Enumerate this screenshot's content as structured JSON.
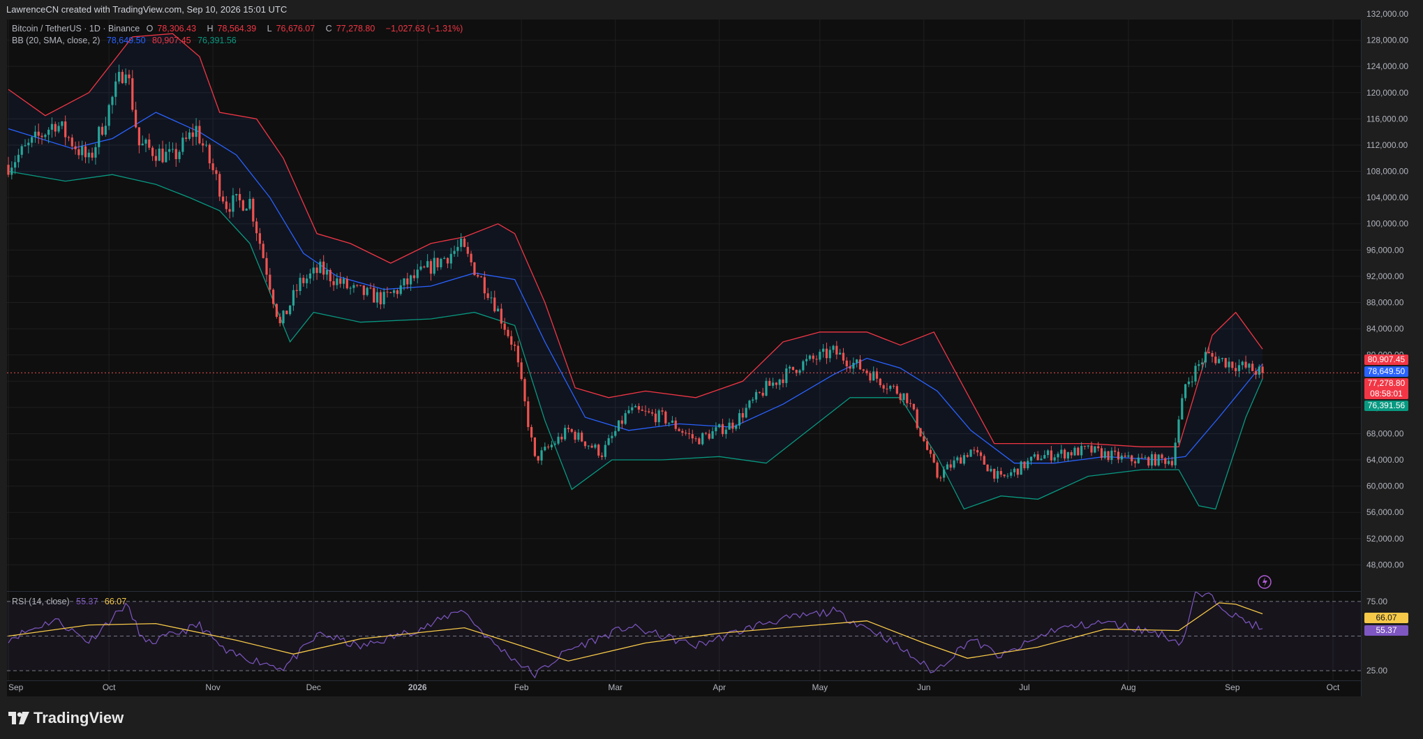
{
  "header": {
    "attribution": "LawrenceCN created with TradingView.com, Sep 10, 2026 15:01 UTC"
  },
  "legend": {
    "symbol": "Bitcoin / TetherUS · 1D · Binance",
    "o_label": "O",
    "o_val": "78,306.43",
    "h_label": "H",
    "h_val": "78,564.39",
    "l_label": "L",
    "l_val": "76,676.07",
    "c_label": "C",
    "c_val": "77,278.80",
    "change": "−1,027.63 (−1.31%)",
    "bb_name": "BB (20, SMA, close, 2)",
    "bb_basis": "78,649.50",
    "bb_upper": "80,907.45",
    "bb_lower": "76,391.56",
    "rsi_name": "RSI (14, close)",
    "rsi_val": "55.37",
    "rsi_ma": "66.07"
  },
  "price_tags": {
    "upper": "80,907.45",
    "basis": "78,649.50",
    "close": "77,278.80",
    "countdown": "08:58:01",
    "lower": "76,391.56",
    "rsi_ma": "66.07",
    "rsi": "55.37"
  },
  "brand": {
    "name": "TradingView"
  },
  "colors": {
    "background": "#0f0f0f",
    "up": "#26a69a",
    "down": "#ef5350",
    "bb_upper": "#f23645",
    "bb_basis": "#2962ff",
    "bb_lower": "#089981",
    "rsi": "#7e57c2",
    "rsi_ma": "#f7c948"
  },
  "chart_data": [
    {
      "type": "candlestick",
      "title": "Bitcoin / TetherUS · 1D · Binance",
      "ylim": [
        44000,
        132000
      ],
      "yticks": [
        48000,
        52000,
        56000,
        60000,
        64000,
        68000,
        72000,
        76000,
        80000,
        84000,
        88000,
        92000,
        96000,
        100000,
        104000,
        108000,
        112000,
        116000,
        120000,
        124000,
        128000,
        132000
      ],
      "ytick_labels": [
        "48,000.00",
        "52,000.00",
        "56,000.00",
        "60,000.00",
        "64,000.00",
        "68,000.00",
        "72,000.00",
        "76,000.00",
        "80,000.00",
        "84,000.00",
        "88,000.00",
        "92,000.00",
        "96,000.00",
        "100,000.00",
        "104,000.00",
        "108,000.00",
        "112,000.00",
        "116,000.00",
        "120,000.00",
        "124,000.00",
        "128,000.00",
        "132,000.00"
      ],
      "xtick_labels": [
        "Sep",
        "Oct",
        "Nov",
        "Dec",
        "2026",
        "Feb",
        "Mar",
        "Apr",
        "May",
        "Jun",
        "Jul",
        "Aug",
        "Sep",
        "Oct"
      ],
      "close_path": [
        {
          "x": "2025-09-01",
          "y": 109000
        },
        {
          "x": "2025-09-15",
          "y": 115500
        },
        {
          "x": "2025-09-25",
          "y": 109500
        },
        {
          "x": "2025-10-06",
          "y": 124500
        },
        {
          "x": "2025-10-10",
          "y": 112000
        },
        {
          "x": "2025-10-20",
          "y": 110000
        },
        {
          "x": "2025-10-27",
          "y": 114500
        },
        {
          "x": "2025-11-05",
          "y": 103000
        },
        {
          "x": "2025-11-12",
          "y": 103500
        },
        {
          "x": "2025-11-21",
          "y": 84500
        },
        {
          "x": "2025-11-27",
          "y": 91000
        },
        {
          "x": "2025-12-03",
          "y": 93000
        },
        {
          "x": "2025-12-12",
          "y": 90000
        },
        {
          "x": "2025-12-22",
          "y": 88500
        },
        {
          "x": "2026-01-05",
          "y": 93500
        },
        {
          "x": "2026-01-14",
          "y": 96500
        },
        {
          "x": "2026-01-23",
          "y": 89000
        },
        {
          "x": "2026-01-30",
          "y": 81000
        },
        {
          "x": "2026-02-05",
          "y": 64000
        },
        {
          "x": "2026-02-15",
          "y": 68500
        },
        {
          "x": "2026-02-25",
          "y": 65000
        },
        {
          "x": "2026-03-05",
          "y": 71500
        },
        {
          "x": "2026-03-15",
          "y": 70500
        },
        {
          "x": "2026-03-25",
          "y": 67000
        },
        {
          "x": "2026-04-05",
          "y": 69500
        },
        {
          "x": "2026-04-15",
          "y": 75000
        },
        {
          "x": "2026-04-25",
          "y": 78500
        },
        {
          "x": "2026-05-05",
          "y": 80500
        },
        {
          "x": "2026-05-15",
          "y": 77500
        },
        {
          "x": "2026-05-27",
          "y": 73500
        },
        {
          "x": "2026-06-05",
          "y": 61500
        },
        {
          "x": "2026-06-15",
          "y": 65500
        },
        {
          "x": "2026-06-24",
          "y": 61000
        },
        {
          "x": "2026-07-05",
          "y": 64500
        },
        {
          "x": "2026-07-20",
          "y": 65500
        },
        {
          "x": "2026-08-01",
          "y": 64000
        },
        {
          "x": "2026-08-14",
          "y": 64000
        },
        {
          "x": "2026-08-18",
          "y": 75500
        },
        {
          "x": "2026-08-24",
          "y": 80000
        },
        {
          "x": "2026-09-02",
          "y": 78500
        },
        {
          "x": "2026-09-10",
          "y": 77278.8
        }
      ],
      "series": [
        {
          "name": "BB upper",
          "values": [
            {
              "x": "2025-09-01",
              "y": 120500
            },
            {
              "x": "2025-09-12",
              "y": 116500
            },
            {
              "x": "2025-09-25",
              "y": 120000
            },
            {
              "x": "2025-10-08",
              "y": 128500
            },
            {
              "x": "2025-10-20",
              "y": 129000
            },
            {
              "x": "2025-10-28",
              "y": 125500
            },
            {
              "x": "2025-11-03",
              "y": 117000
            },
            {
              "x": "2025-11-14",
              "y": 116000
            },
            {
              "x": "2025-11-22",
              "y": 110000
            },
            {
              "x": "2025-12-02",
              "y": 98500
            },
            {
              "x": "2025-12-12",
              "y": 97000
            },
            {
              "x": "2025-12-24",
              "y": 94000
            },
            {
              "x": "2026-01-05",
              "y": 97000
            },
            {
              "x": "2026-01-15",
              "y": 98000
            },
            {
              "x": "2026-01-25",
              "y": 100000
            },
            {
              "x": "2026-01-30",
              "y": 98500
            },
            {
              "x": "2026-02-08",
              "y": 88000
            },
            {
              "x": "2026-02-17",
              "y": 75000
            },
            {
              "x": "2026-02-27",
              "y": 73500
            },
            {
              "x": "2026-03-10",
              "y": 74500
            },
            {
              "x": "2026-03-25",
              "y": 73500
            },
            {
              "x": "2026-04-08",
              "y": 76000
            },
            {
              "x": "2026-04-20",
              "y": 82000
            },
            {
              "x": "2026-05-01",
              "y": 83500
            },
            {
              "x": "2026-05-15",
              "y": 83500
            },
            {
              "x": "2026-05-25",
              "y": 81500
            },
            {
              "x": "2026-06-04",
              "y": 83500
            },
            {
              "x": "2026-06-13",
              "y": 75000
            },
            {
              "x": "2026-06-22",
              "y": 66500
            },
            {
              "x": "2026-07-05",
              "y": 66500
            },
            {
              "x": "2026-07-20",
              "y": 66500
            },
            {
              "x": "2026-08-05",
              "y": 66000
            },
            {
              "x": "2026-08-16",
              "y": 66000
            },
            {
              "x": "2026-08-26",
              "y": 83000
            },
            {
              "x": "2026-09-02",
              "y": 86500
            },
            {
              "x": "2026-09-10",
              "y": 80907.45
            }
          ]
        },
        {
          "name": "BB basis",
          "values": [
            {
              "x": "2025-09-01",
              "y": 114500
            },
            {
              "x": "2025-09-20",
              "y": 111500
            },
            {
              "x": "2025-10-02",
              "y": 113000
            },
            {
              "x": "2025-10-15",
              "y": 117000
            },
            {
              "x": "2025-10-28",
              "y": 114000
            },
            {
              "x": "2025-11-08",
              "y": 110500
            },
            {
              "x": "2025-11-18",
              "y": 104000
            },
            {
              "x": "2025-11-28",
              "y": 95500
            },
            {
              "x": "2025-12-08",
              "y": 92000
            },
            {
              "x": "2025-12-22",
              "y": 90000
            },
            {
              "x": "2026-01-05",
              "y": 90500
            },
            {
              "x": "2026-01-18",
              "y": 92500
            },
            {
              "x": "2026-01-30",
              "y": 91500
            },
            {
              "x": "2026-02-08",
              "y": 82000
            },
            {
              "x": "2026-02-20",
              "y": 70500
            },
            {
              "x": "2026-03-05",
              "y": 68500
            },
            {
              "x": "2026-03-20",
              "y": 69500
            },
            {
              "x": "2026-04-05",
              "y": 69000
            },
            {
              "x": "2026-04-20",
              "y": 72500
            },
            {
              "x": "2026-05-05",
              "y": 77000
            },
            {
              "x": "2026-05-15",
              "y": 79500
            },
            {
              "x": "2026-05-25",
              "y": 78000
            },
            {
              "x": "2026-06-05",
              "y": 74500
            },
            {
              "x": "2026-06-15",
              "y": 68500
            },
            {
              "x": "2026-06-28",
              "y": 63500
            },
            {
              "x": "2026-07-10",
              "y": 63500
            },
            {
              "x": "2026-07-25",
              "y": 64500
            },
            {
              "x": "2026-08-10",
              "y": 64000
            },
            {
              "x": "2026-08-18",
              "y": 64500
            },
            {
              "x": "2026-08-28",
              "y": 70500
            },
            {
              "x": "2026-09-05",
              "y": 75500
            },
            {
              "x": "2026-09-10",
              "y": 78649.5
            }
          ]
        },
        {
          "name": "BB lower",
          "values": [
            {
              "x": "2025-09-01",
              "y": 108000
            },
            {
              "x": "2025-09-18",
              "y": 106500
            },
            {
              "x": "2025-10-02",
              "y": 107500
            },
            {
              "x": "2025-10-15",
              "y": 106000
            },
            {
              "x": "2025-10-25",
              "y": 104000
            },
            {
              "x": "2025-11-03",
              "y": 102000
            },
            {
              "x": "2025-11-12",
              "y": 97000
            },
            {
              "x": "2025-11-24",
              "y": 82000
            },
            {
              "x": "2025-12-01",
              "y": 86500
            },
            {
              "x": "2025-12-15",
              "y": 85000
            },
            {
              "x": "2026-01-05",
              "y": 85500
            },
            {
              "x": "2026-01-18",
              "y": 86500
            },
            {
              "x": "2026-01-30",
              "y": 84500
            },
            {
              "x": "2026-02-08",
              "y": 70000
            },
            {
              "x": "2026-02-16",
              "y": 59500
            },
            {
              "x": "2026-02-28",
              "y": 64000
            },
            {
              "x": "2026-03-15",
              "y": 64000
            },
            {
              "x": "2026-04-01",
              "y": 64500
            },
            {
              "x": "2026-04-15",
              "y": 63500
            },
            {
              "x": "2026-04-30",
              "y": 69500
            },
            {
              "x": "2026-05-10",
              "y": 73500
            },
            {
              "x": "2026-05-25",
              "y": 73500
            },
            {
              "x": "2026-06-05",
              "y": 64500
            },
            {
              "x": "2026-06-13",
              "y": 56500
            },
            {
              "x": "2026-06-24",
              "y": 58500
            },
            {
              "x": "2026-07-05",
              "y": 58000
            },
            {
              "x": "2026-07-20",
              "y": 61500
            },
            {
              "x": "2026-08-05",
              "y": 62500
            },
            {
              "x": "2026-08-16",
              "y": 62500
            },
            {
              "x": "2026-08-22",
              "y": 57000
            },
            {
              "x": "2026-08-27",
              "y": 56500
            },
            {
              "x": "2026-09-05",
              "y": 70500
            },
            {
              "x": "2026-09-10",
              "y": 76391.56
            }
          ]
        }
      ]
    },
    {
      "type": "line",
      "title": "RSI (14, close)",
      "ylim": [
        18,
        82
      ],
      "yticks": [
        25,
        75
      ],
      "ytick_labels": [
        "25.00",
        "75.00"
      ],
      "series": [
        {
          "name": "RSI",
          "values": [
            {
              "x": "2025-09-01",
              "y": 48
            },
            {
              "x": "2025-09-15",
              "y": 62
            },
            {
              "x": "2025-09-25",
              "y": 46
            },
            {
              "x": "2025-10-06",
              "y": 73
            },
            {
              "x": "2025-10-12",
              "y": 44
            },
            {
              "x": "2025-10-28",
              "y": 58
            },
            {
              "x": "2025-11-05",
              "y": 38
            },
            {
              "x": "2025-11-22",
              "y": 27
            },
            {
              "x": "2025-12-03",
              "y": 52
            },
            {
              "x": "2025-12-15",
              "y": 42
            },
            {
              "x": "2026-01-05",
              "y": 58
            },
            {
              "x": "2026-01-14",
              "y": 70
            },
            {
              "x": "2026-01-23",
              "y": 46
            },
            {
              "x": "2026-02-05",
              "y": 22
            },
            {
              "x": "2026-02-15",
              "y": 40
            },
            {
              "x": "2026-03-05",
              "y": 57
            },
            {
              "x": "2026-03-25",
              "y": 43
            },
            {
              "x": "2026-04-15",
              "y": 60
            },
            {
              "x": "2026-05-05",
              "y": 68
            },
            {
              "x": "2026-05-20",
              "y": 50
            },
            {
              "x": "2026-06-04",
              "y": 24
            },
            {
              "x": "2026-06-15",
              "y": 48
            },
            {
              "x": "2026-06-24",
              "y": 35
            },
            {
              "x": "2026-07-10",
              "y": 55
            },
            {
              "x": "2026-07-25",
              "y": 60
            },
            {
              "x": "2026-08-10",
              "y": 52
            },
            {
              "x": "2026-08-17",
              "y": 45
            },
            {
              "x": "2026-08-21",
              "y": 80
            },
            {
              "x": "2026-08-26",
              "y": 78
            },
            {
              "x": "2026-09-02",
              "y": 64
            },
            {
              "x": "2026-09-10",
              "y": 55.37
            }
          ]
        },
        {
          "name": "RSI-based MA",
          "values": [
            {
              "x": "2025-09-01",
              "y": 50
            },
            {
              "x": "2025-09-25",
              "y": 58
            },
            {
              "x": "2025-10-15",
              "y": 59
            },
            {
              "x": "2025-11-08",
              "y": 47
            },
            {
              "x": "2025-11-25",
              "y": 37
            },
            {
              "x": "2025-12-15",
              "y": 48
            },
            {
              "x": "2026-01-15",
              "y": 56
            },
            {
              "x": "2026-01-28",
              "y": 46
            },
            {
              "x": "2026-02-15",
              "y": 32
            },
            {
              "x": "2026-03-10",
              "y": 45
            },
            {
              "x": "2026-04-01",
              "y": 52
            },
            {
              "x": "2026-04-25",
              "y": 57
            },
            {
              "x": "2026-05-15",
              "y": 61
            },
            {
              "x": "2026-06-01",
              "y": 45
            },
            {
              "x": "2026-06-14",
              "y": 34
            },
            {
              "x": "2026-07-05",
              "y": 42
            },
            {
              "x": "2026-07-25",
              "y": 55
            },
            {
              "x": "2026-08-16",
              "y": 54
            },
            {
              "x": "2026-08-28",
              "y": 74
            },
            {
              "x": "2026-09-02",
              "y": 73
            },
            {
              "x": "2026-09-10",
              "y": 66.07
            }
          ]
        }
      ]
    }
  ]
}
